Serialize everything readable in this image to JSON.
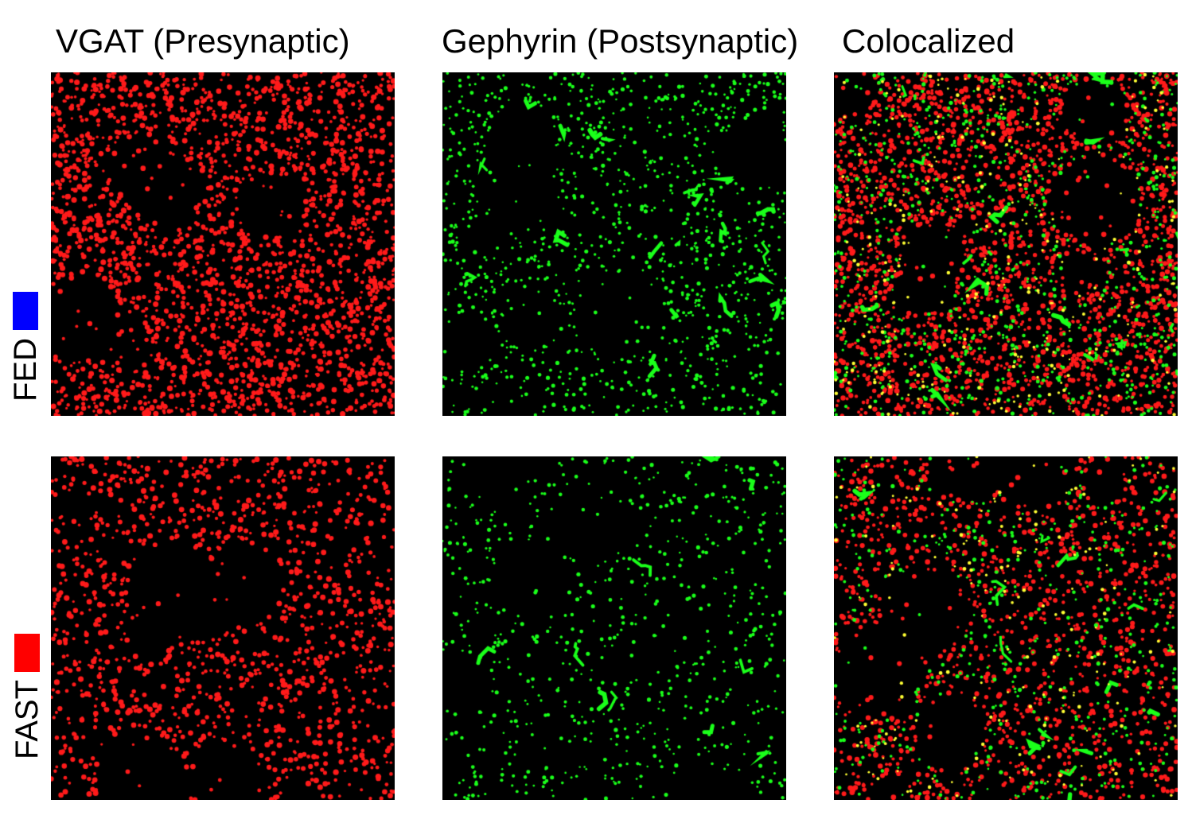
{
  "columns": [
    {
      "title": "VGAT (Presynaptic)"
    },
    {
      "title": "Gephyrin (Postsynaptic)"
    },
    {
      "title": "Colocalized"
    }
  ],
  "rows": [
    {
      "label": "FED",
      "swatch_color": "#0000ff"
    },
    {
      "label": "FAST",
      "swatch_color": "#ff0000"
    }
  ],
  "colors": {
    "presynaptic": "#ff1a1a",
    "postsynaptic": "#1aff1a",
    "colocalized": "#ffff33",
    "background": "#000000"
  }
}
